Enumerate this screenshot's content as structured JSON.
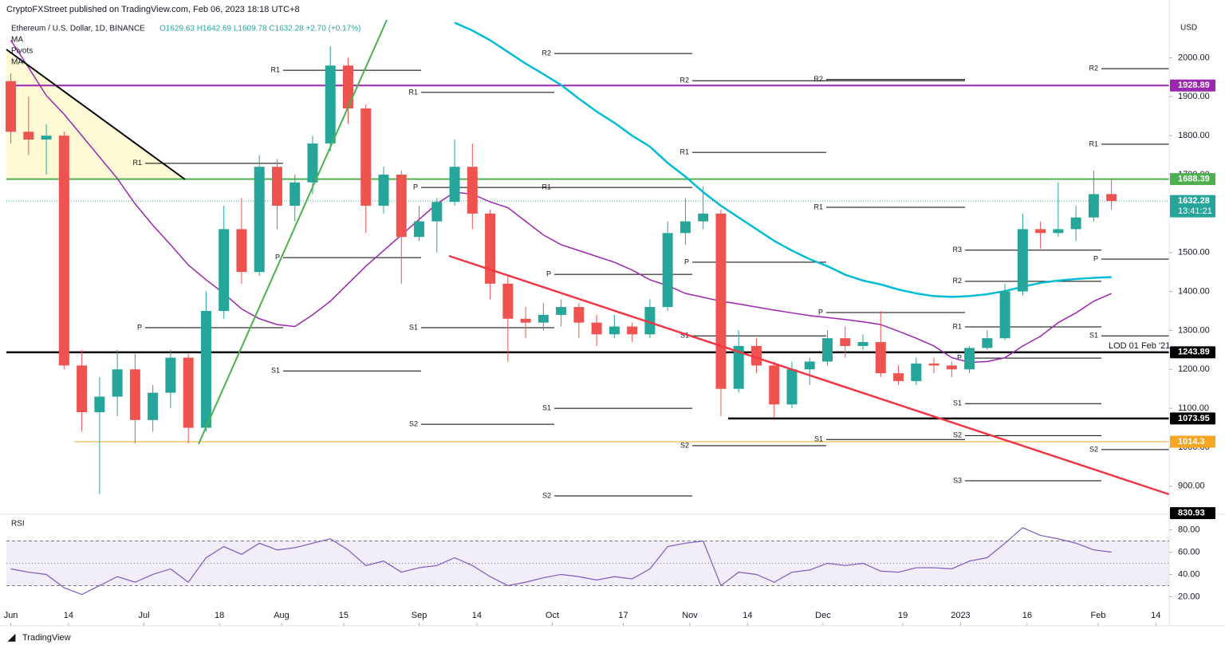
{
  "chart_data": {
    "type": "candlestick",
    "publisher": "CryptoFXStreet published on TradingView.com, Feb 06, 2023 18:18 UTC+8",
    "title": "Ethereum / U.S. Dollar, 1D, BINANCE",
    "ohlc_text": "O1629.63 H1642.69 L1609.78 C1632.28 +2.70 (+0.17%)",
    "indicators": [
      "MA",
      "Pivots",
      "MA"
    ],
    "currency": "USD",
    "brand": "TradingView",
    "x": [
      "2022-06-01",
      "2022-06-05",
      "2022-06-09",
      "2022-06-13",
      "2022-06-17",
      "2022-06-21",
      "2022-06-25",
      "2022-06-29",
      "2022-07-03",
      "2022-07-07",
      "2022-07-11",
      "2022-07-15",
      "2022-07-19",
      "2022-07-23",
      "2022-07-27",
      "2022-07-31",
      "2022-08-04",
      "2022-08-08",
      "2022-08-12",
      "2022-08-16",
      "2022-08-20",
      "2022-08-24",
      "2022-08-28",
      "2022-09-01",
      "2022-09-05",
      "2022-09-09",
      "2022-09-13",
      "2022-09-17",
      "2022-09-21",
      "2022-09-25",
      "2022-09-29",
      "2022-10-03",
      "2022-10-07",
      "2022-10-11",
      "2022-10-15",
      "2022-10-19",
      "2022-10-23",
      "2022-10-27",
      "2022-10-31",
      "2022-11-04",
      "2022-11-08",
      "2022-11-12",
      "2022-11-16",
      "2022-11-20",
      "2022-11-24",
      "2022-11-28",
      "2022-12-02",
      "2022-12-06",
      "2022-12-10",
      "2022-12-14",
      "2022-12-18",
      "2022-12-22",
      "2022-12-26",
      "2022-12-30",
      "2023-01-03",
      "2023-01-07",
      "2023-01-11",
      "2023-01-15",
      "2023-01-19",
      "2023-01-23",
      "2023-01-27",
      "2023-01-31",
      "2023-02-04"
    ],
    "open": [
      1940,
      1810,
      1790,
      1800,
      1210,
      1090,
      1130,
      1200,
      1070,
      1140,
      1230,
      1050,
      1350,
      1560,
      1450,
      1720,
      1620,
      1680,
      1780,
      1980,
      1870,
      1620,
      1700,
      1540,
      1580,
      1630,
      1720,
      1600,
      1420,
      1330,
      1320,
      1340,
      1360,
      1320,
      1290,
      1310,
      1290,
      1360,
      1550,
      1580,
      1600,
      1150,
      1260,
      1210,
      1110,
      1200,
      1220,
      1280,
      1260,
      1270,
      1190,
      1170,
      1215,
      1210,
      1200,
      1255,
      1280,
      1400,
      1560,
      1550,
      1560,
      1590,
      1650
    ],
    "high": [
      1960,
      1900,
      1830,
      1810,
      1250,
      1180,
      1250,
      1240,
      1160,
      1250,
      1240,
      1400,
      1620,
      1640,
      1750,
      1740,
      1700,
      1800,
      2030,
      2000,
      1880,
      1720,
      1710,
      1620,
      1640,
      1790,
      1780,
      1610,
      1440,
      1360,
      1370,
      1380,
      1370,
      1340,
      1340,
      1320,
      1380,
      1580,
      1640,
      1670,
      1610,
      1300,
      1280,
      1220,
      1220,
      1230,
      1300,
      1310,
      1290,
      1350,
      1210,
      1230,
      1230,
      1220,
      1260,
      1300,
      1420,
      1600,
      1580,
      1680,
      1620,
      1710,
      1690
    ],
    "low": [
      1780,
      1750,
      1700,
      1200,
      1040,
      880,
      1080,
      1010,
      1040,
      1100,
      1010,
      1040,
      1330,
      1420,
      1440,
      1560,
      1580,
      1650,
      1760,
      1830,
      1550,
      1600,
      1420,
      1530,
      1500,
      1620,
      1560,
      1380,
      1220,
      1280,
      1300,
      1310,
      1280,
      1260,
      1280,
      1270,
      1280,
      1350,
      1520,
      1560,
      1080,
      1140,
      1190,
      1075,
      1100,
      1160,
      1210,
      1230,
      1250,
      1180,
      1160,
      1160,
      1190,
      1180,
      1190,
      1250,
      1275,
      1390,
      1510,
      1540,
      1530,
      1580,
      1610
    ],
    "close": [
      1810,
      1790,
      1800,
      1210,
      1090,
      1130,
      1200,
      1070,
      1140,
      1230,
      1050,
      1350,
      1560,
      1450,
      1720,
      1620,
      1680,
      1780,
      1980,
      1870,
      1620,
      1700,
      1540,
      1580,
      1630,
      1720,
      1600,
      1420,
      1330,
      1320,
      1340,
      1360,
      1320,
      1290,
      1310,
      1290,
      1360,
      1550,
      1580,
      1600,
      1150,
      1260,
      1210,
      1110,
      1200,
      1220,
      1280,
      1260,
      1270,
      1190,
      1170,
      1215,
      1210,
      1200,
      1255,
      1280,
      1400,
      1560,
      1550,
      1560,
      1590,
      1650,
      1632.28
    ],
    "up_color": "#26a69a",
    "down_color": "#ef5350",
    "series": [
      {
        "color": "#00bcd4",
        "values": [
          null,
          null,
          null,
          null,
          null,
          null,
          null,
          null,
          null,
          null,
          null,
          null,
          null,
          null,
          null,
          null,
          null,
          null,
          null,
          null,
          null,
          null,
          null,
          null,
          null,
          2090,
          2070,
          2045,
          2015,
          1985,
          1958,
          1930,
          1895,
          1862,
          1833,
          1800,
          1772,
          1730,
          1695,
          1655,
          1620,
          1590,
          1560,
          1530,
          1505,
          1483,
          1465,
          1443,
          1428,
          1418,
          1405,
          1395,
          1388,
          1386,
          1388,
          1393,
          1401,
          1412,
          1422,
          1428,
          1432,
          1435,
          1437
        ]
      },
      {
        "color": "#9c27b0",
        "values": [
          2045,
          1975,
          1903,
          1855,
          1800,
          1745,
          1690,
          1625,
          1570,
          1520,
          1468,
          1430,
          1395,
          1355,
          1330,
          1315,
          1310,
          1340,
          1375,
          1420,
          1465,
          1505,
          1545,
          1585,
          1625,
          1655,
          1650,
          1630,
          1615,
          1580,
          1545,
          1520,
          1505,
          1490,
          1475,
          1455,
          1430,
          1415,
          1395,
          1385,
          1375,
          1368,
          1360,
          1352,
          1345,
          1338,
          1333,
          1328,
          1322,
          1315,
          1298,
          1280,
          1260,
          1230,
          1218,
          1220,
          1230,
          1260,
          1285,
          1320,
          1345,
          1375,
          1395
        ]
      }
    ],
    "levels": [
      {
        "value": 1928.89,
        "color": "#9c27b0"
      },
      {
        "value": 1688.39,
        "color": "#4caf50"
      },
      {
        "value": 1632.28,
        "color": "#26a69a"
      },
      {
        "value": 1243.89,
        "color": "#000000"
      },
      {
        "value": 1073.95,
        "color": "#000000"
      },
      {
        "value": 1014.3,
        "color": "#f5a623"
      },
      {
        "value": 830.93,
        "color": "#000000"
      }
    ],
    "countdown": "13:41:21",
    "annotations": [
      "LOD 01 Feb '21"
    ],
    "pivots": [
      {
        "label": "R1",
        "value": 1968
      },
      {
        "label": "R1",
        "value": 1729
      },
      {
        "label": "P",
        "value": 1307
      },
      {
        "label": "P",
        "value": 1487
      },
      {
        "label": "S1",
        "value": 1196
      },
      {
        "label": "R1",
        "value": 1911
      },
      {
        "label": "P",
        "value": 1667
      },
      {
        "label": "S1",
        "value": 1307
      },
      {
        "label": "S2",
        "value": 1059
      },
      {
        "label": "R2",
        "value": 2011
      },
      {
        "label": "R1",
        "value": 1667
      },
      {
        "label": "P",
        "value": 1444
      },
      {
        "label": "S1",
        "value": 1100
      },
      {
        "label": "S2",
        "value": 875
      },
      {
        "label": "R2",
        "value": 1941
      },
      {
        "label": "R1",
        "value": 1757
      },
      {
        "label": "P",
        "value": 1475
      },
      {
        "label": "S1",
        "value": 1286
      },
      {
        "label": "S2",
        "value": 1004
      },
      {
        "label": "R2",
        "value": 1944
      },
      {
        "label": "R1",
        "value": 1616
      },
      {
        "label": "P",
        "value": 1346
      },
      {
        "label": "S1",
        "value": 1020
      },
      {
        "label": "R3",
        "value": 1506
      },
      {
        "label": "R2",
        "value": 1426
      },
      {
        "label": "R1",
        "value": 1309
      },
      {
        "label": "P",
        "value": 1229
      },
      {
        "label": "S1",
        "value": 1112
      },
      {
        "label": "S2",
        "value": 1030
      },
      {
        "label": "S3",
        "value": 914
      },
      {
        "label": "R2",
        "value": 1972
      },
      {
        "label": "R1",
        "value": 1778
      },
      {
        "label": "P",
        "value": 1483
      },
      {
        "label": "S1",
        "value": 1286
      },
      {
        "label": "S2",
        "value": 994
      }
    ],
    "xlim": [
      "2022-05-31",
      "2023-02-17"
    ],
    "xticks": [
      {
        "value": "2022-06-01",
        "label": "Jun"
      },
      {
        "value": "2022-06-14",
        "label": "14"
      },
      {
        "value": "2022-07-01",
        "label": "Jul"
      },
      {
        "value": "2022-07-18",
        "label": "18"
      },
      {
        "value": "2022-08-01",
        "label": "Aug"
      },
      {
        "value": "2022-08-15",
        "label": "15"
      },
      {
        "value": "2022-09-01",
        "label": "Sep"
      },
      {
        "value": "2022-09-14",
        "label": "14"
      },
      {
        "value": "2022-10-01",
        "label": "Oct"
      },
      {
        "value": "2022-10-17",
        "label": "17"
      },
      {
        "value": "2022-11-01",
        "label": "Nov"
      },
      {
        "value": "2022-11-14",
        "label": "14"
      },
      {
        "value": "2022-12-01",
        "label": "Dec"
      },
      {
        "value": "2022-12-19",
        "label": "19"
      },
      {
        "value": "2023-01-01",
        "label": "2023"
      },
      {
        "value": "2023-01-16",
        "label": "16"
      },
      {
        "value": "2023-02-01",
        "label": "Feb"
      },
      {
        "value": "2023-02-14",
        "label": "14"
      }
    ],
    "ylim": [
      828,
      2091
    ],
    "yticks": [
      {
        "value": 900,
        "label": "900.00"
      },
      {
        "value": 1000,
        "label": "1000.00"
      },
      {
        "value": 1100,
        "label": "1100.00"
      },
      {
        "value": 1200,
        "label": "1200.00"
      },
      {
        "value": 1300,
        "label": "1300.00"
      },
      {
        "value": 1400,
        "label": "1400.00"
      },
      {
        "value": 1500,
        "label": "1500.00"
      },
      {
        "value": 1700,
        "label": "1700.00"
      },
      {
        "value": 1800,
        "label": "1800.00"
      },
      {
        "value": 1900,
        "label": "1900.00"
      },
      {
        "value": 2000,
        "label": "2000.00"
      }
    ],
    "grid": false,
    "rsi": {
      "title": "RSI",
      "color": "#7e57c2",
      "values": [
        45,
        42,
        40,
        28,
        22,
        30,
        38,
        33,
        40,
        45,
        33,
        55,
        65,
        58,
        68,
        62,
        64,
        68,
        72,
        62,
        48,
        52,
        42,
        46,
        48,
        55,
        48,
        38,
        30,
        33,
        37,
        40,
        38,
        35,
        38,
        36,
        45,
        65,
        68,
        70,
        30,
        42,
        40,
        33,
        42,
        44,
        50,
        48,
        50,
        43,
        42,
        46,
        46,
        45,
        52,
        55,
        68,
        82,
        75,
        72,
        68,
        62,
        60
      ],
      "bands": [
        30,
        50,
        70
      ],
      "ylim": [
        11,
        94
      ],
      "yticks": [
        {
          "value": 20,
          "label": "20.00"
        },
        {
          "value": 40,
          "label": "40.00"
        },
        {
          "value": 60,
          "label": "60.00"
        },
        {
          "value": 80,
          "label": "80.00"
        }
      ]
    }
  }
}
